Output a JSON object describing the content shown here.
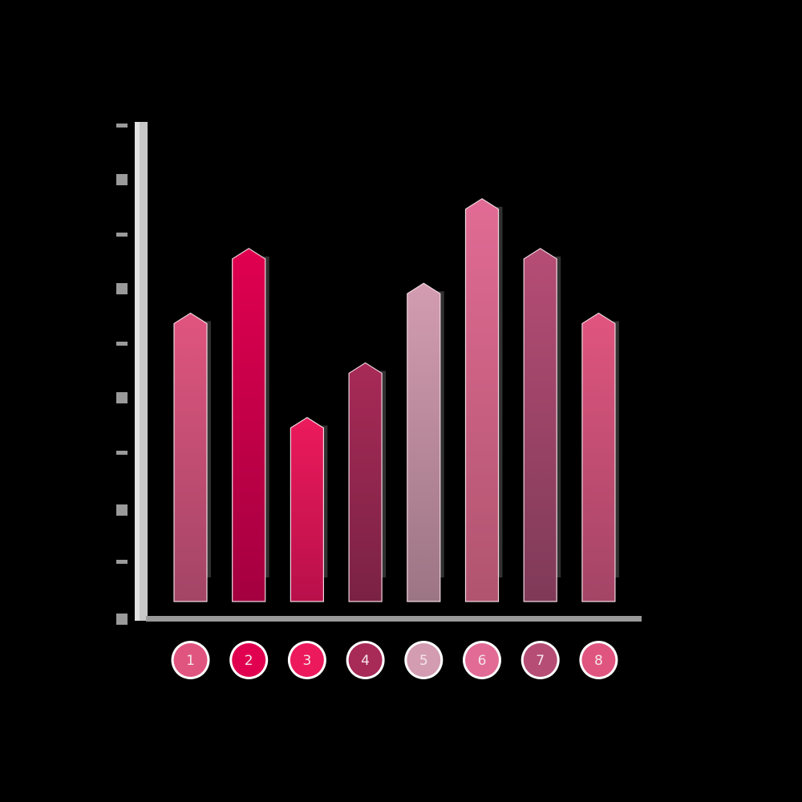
{
  "chart_data": {
    "type": "bar",
    "title": "",
    "xlabel": "",
    "ylabel": "",
    "categories": [
      "1",
      "2",
      "3",
      "4",
      "5",
      "6",
      "7",
      "8"
    ],
    "values": [
      58,
      71,
      37,
      48,
      64,
      81,
      71,
      58
    ],
    "ylim": [
      0,
      90
    ],
    "grid": false,
    "legend": "none",
    "tick_labels_visible": false,
    "bar_colors": [
      "#e0557f",
      "#e0004f",
      "#ec1a5c",
      "#a82a57",
      "#d39cb0",
      "#e16b94",
      "#b64d75",
      "#e0557f"
    ],
    "bar_colors_bottom": [
      "#a34566",
      "#a40040",
      "#b8104a",
      "#7a2244",
      "#9c7585",
      "#b0546f",
      "#7f3a58",
      "#a34566"
    ],
    "axis_color": "#c8c8c8"
  }
}
